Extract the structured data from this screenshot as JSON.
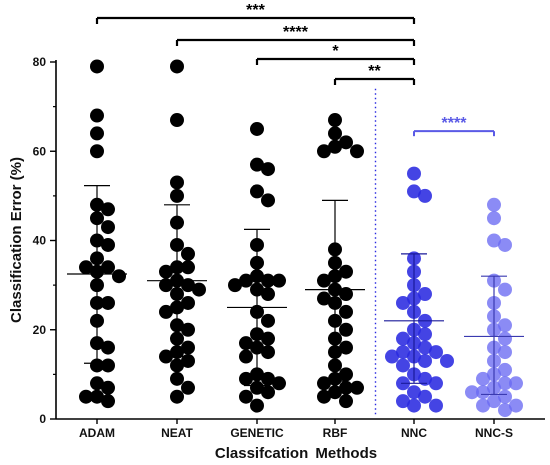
{
  "chart_data": {
    "type": "scatter",
    "subtype": "dot-plot-with-mean-and-sd",
    "xlabel": "Classifcation  Methods",
    "ylabel": "Classification Error (%)",
    "ylim": [
      0,
      80
    ],
    "yticks": [
      "0",
      "20",
      "40",
      "60",
      "80"
    ],
    "categories": [
      "ADAM",
      "NEAT",
      "GENETIC",
      "RBF",
      "NNC",
      "NNC-S"
    ],
    "colors": {
      "baseline_points": "#000000",
      "nnc_points": "#2a2ae0",
      "nnc_s_points": "#6a6af2",
      "blue_bracket": "#5a5ae6",
      "separator": "#2a2ae0"
    },
    "series": [
      {
        "category": "ADAM",
        "mean": 32.5,
        "sd_low": 12.5,
        "sd_high": 52.3,
        "values": [
          79,
          68,
          64,
          60,
          48,
          47,
          45,
          43,
          40,
          39,
          36,
          34,
          34,
          33,
          32,
          30,
          26,
          26,
          22,
          17,
          16,
          12,
          12,
          8,
          7,
          5,
          5,
          4
        ]
      },
      {
        "category": "NEAT",
        "mean": 31,
        "sd_low": 14,
        "sd_high": 48,
        "values": [
          79,
          67,
          53,
          50,
          44,
          39,
          37,
          34,
          34,
          33,
          31,
          30,
          30,
          29,
          28,
          26,
          25,
          24,
          21,
          20,
          18,
          16,
          15,
          14,
          13,
          12,
          9,
          7,
          5
        ]
      },
      {
        "category": "GENETIC",
        "mean": 25,
        "sd_low": 7.5,
        "sd_high": 42.5,
        "values": [
          65,
          57,
          56,
          51,
          49,
          39,
          35,
          32,
          31,
          31,
          31,
          30,
          29,
          28,
          24,
          22,
          19,
          18,
          17,
          16,
          15,
          14,
          10,
          9,
          9,
          8,
          7,
          6,
          5,
          3
        ]
      },
      {
        "category": "RBF",
        "mean": 29,
        "sd_low": 8.5,
        "sd_high": 49,
        "values": [
          67,
          64,
          62,
          61,
          60,
          60,
          38,
          35,
          33,
          32,
          31,
          29,
          28,
          27,
          26,
          24,
          22,
          20,
          18,
          16,
          15,
          12,
          10,
          9,
          8,
          7,
          7,
          6,
          5,
          4
        ]
      },
      {
        "category": "NNC",
        "mean": 22,
        "sd_low": 8,
        "sd_high": 37,
        "values": [
          55,
          51,
          50,
          36,
          33,
          30,
          28,
          27,
          26,
          24,
          22,
          20,
          19,
          18,
          17,
          16,
          15,
          15,
          14,
          14,
          13,
          13,
          12,
          10,
          9,
          8,
          8,
          6,
          5,
          4,
          3,
          3
        ]
      },
      {
        "category": "NNC-S",
        "mean": 18.5,
        "sd_low": 5.5,
        "sd_high": 32,
        "values": [
          48,
          45,
          40,
          39,
          31,
          29,
          26,
          23,
          21,
          20,
          18,
          16,
          15,
          13,
          11,
          10,
          9,
          8,
          8,
          7,
          6,
          6,
          5,
          4,
          3,
          3,
          2
        ]
      }
    ],
    "significance": [
      {
        "from": "ADAM",
        "to": "NNC",
        "label": "***",
        "color": "#000000"
      },
      {
        "from": "NEAT",
        "to": "NNC",
        "label": "****",
        "color": "#000000"
      },
      {
        "from": "GENETIC",
        "to": "NNC",
        "label": "*",
        "color": "#000000"
      },
      {
        "from": "RBF",
        "to": "NNC",
        "label": "**",
        "color": "#000000"
      },
      {
        "from": "NNC",
        "to": "NNC-S",
        "label": "****",
        "color": "#5a5ae6"
      }
    ]
  }
}
